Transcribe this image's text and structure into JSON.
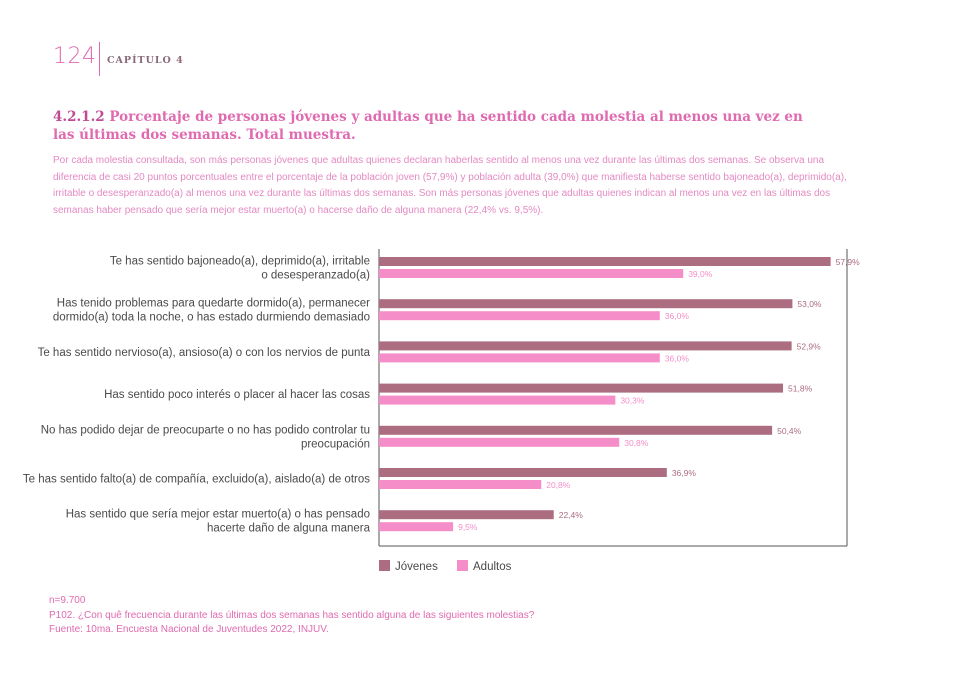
{
  "header": {
    "page_number": "124",
    "chapter": "CAPÍTULO 4"
  },
  "section": {
    "number": "4.2.1.2",
    "title": "Porcentaje de personas jóvenes y adultas que ha sentido cada molestia al menos una vez en las últimas dos semanas. Total muestra."
  },
  "intro_text": "Por cada molestia consultada, son más personas jóvenes que adultas quienes declaran haberlas sentido al menos una vez durante las últimas dos semanas. Se observa una diferencia de casi 20 puntos porcentuales entre el porcentaje de la población joven (57,9%) y población adulta (39,0%) que manifiesta haberse sentido bajoneado(a), deprimido(a), irritable o desesperanzado(a) al menos una vez durante las últimas dos semanas. Son más personas jóvenes que adultas quienes indican al menos una vez en las últimas dos semanas haber pensado que sería mejor estar muerto(a) o hacerse daño de alguna manera (22,4% vs. 9,5%).",
  "chart_data": {
    "type": "bar",
    "orientation": "horizontal",
    "categories": [
      [
        "Te has sentido bajoneado(a), deprimido(a), irritable",
        "o desesperanzado(a)"
      ],
      [
        "Has tenido problemas para quedarte dormido(a), permanecer",
        "dormido(a) toda la noche, o has estado durmiendo demasiado"
      ],
      [
        "Te has sentido nervioso(a), ansioso(a) o con los nervios de punta"
      ],
      [
        "Has sentido poco interés o placer al hacer las cosas"
      ],
      [
        "No has podido dejar de preocuparte o no has podido controlar tu",
        "preocupación"
      ],
      [
        "Te has sentido falto(a) de compañía, excluido(a), aislado(a) de otros"
      ],
      [
        "Has sentido que sería mejor estar muerto(a) o has pensado",
        "hacerte daño de alguna manera"
      ]
    ],
    "series": [
      {
        "name": "Jóvenes",
        "color": "#ab6d7f",
        "values": [
          57.9,
          53.0,
          52.9,
          51.8,
          50.4,
          36.9,
          22.4
        ],
        "labels": [
          "57,9%",
          "53,0%",
          "52,9%",
          "51,8%",
          "50,4%",
          "36,9%",
          "22,4%"
        ]
      },
      {
        "name": "Adultos",
        "color": "#f58ec8",
        "values": [
          39.0,
          36.0,
          36.0,
          30.3,
          30.8,
          20.8,
          9.5
        ],
        "labels": [
          "39,0%",
          "36,0%",
          "36,0%",
          "30,3%",
          "30,8%",
          "20,8%",
          "9,5%"
        ]
      }
    ],
    "xlim": [
      0,
      75
    ],
    "legend": "bottom-center",
    "grid": false
  },
  "footnotes": {
    "n": "n=9.700",
    "question": "P102. ¿Con quê frecuencia durante las últimas dos semanas has sentido alguna de las siguientes molestias?",
    "source": "Fuente: 10ma. Encuesta Nacional de Juventudes 2022, INJUV."
  }
}
